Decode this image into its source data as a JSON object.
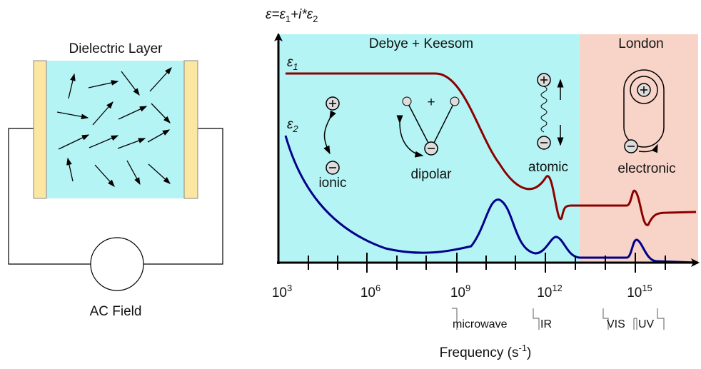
{
  "left": {
    "title": "Dielectric Layer",
    "source": "AC Field"
  },
  "plot": {
    "y_label": [
      "ε=ε",
      "1",
      "+i*ε",
      "2"
    ],
    "regions": [
      "Debye + Keesom",
      "London"
    ],
    "curves": [
      [
        "ε",
        "1"
      ],
      [
        "ε",
        "2"
      ]
    ],
    "mechanisms": {
      "ionic": "ionic",
      "dipolar": "dipolar",
      "dipole_charge": "+",
      "atomic": "atomic",
      "electronic": "electronic"
    },
    "x_ticks": [
      [
        "10",
        "3"
      ],
      [
        "10",
        "6"
      ],
      [
        "10",
        "9"
      ],
      [
        "10",
        "12"
      ],
      [
        "10",
        "15"
      ]
    ],
    "bands": [
      "microwave",
      "IR",
      "VIS",
      "UV"
    ],
    "x_label": [
      "Frequency (s",
      "-1",
      ")"
    ]
  }
}
